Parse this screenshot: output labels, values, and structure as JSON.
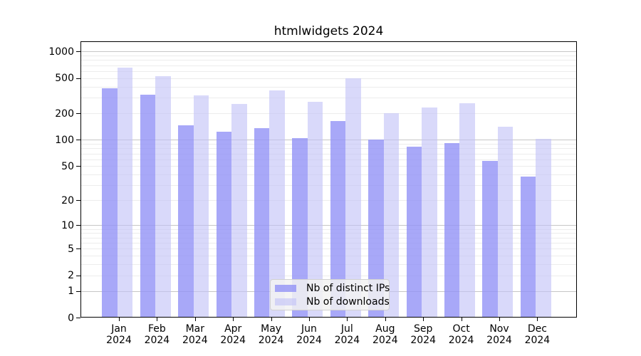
{
  "title": "htmlwidgets 2024",
  "colors": {
    "ips_bar": "rgba(146,146,246,0.8)",
    "downloads_bar": "rgba(193,193,247,0.62)",
    "grid_major": "#c6c6c6",
    "grid_minor": "#ececec",
    "axis": "#000000",
    "legend_bg": "rgba(242,242,242,0.85)",
    "legend_border": "#d0d0d0"
  },
  "chart_data": {
    "type": "bar",
    "title": "htmlwidgets 2024",
    "categories": [
      "Jan",
      "Feb",
      "Mar",
      "Apr",
      "May",
      "Jun",
      "Jul",
      "Aug",
      "Sep",
      "Oct",
      "Nov",
      "Dec"
    ],
    "x_tick_year": "2024",
    "series": [
      {
        "name": "Nb of distinct IPs",
        "values": [
          385,
          325,
          146,
          123,
          137,
          105,
          165,
          101,
          84,
          92,
          58,
          38
        ]
      },
      {
        "name": "Nb of downloads",
        "values": [
          655,
          525,
          320,
          258,
          365,
          270,
          495,
          200,
          234,
          260,
          141,
          103
        ]
      }
    ],
    "y_scale": "log1p",
    "y_tick_values": [
      1000,
      500,
      200,
      100,
      50,
      20,
      10,
      5,
      2,
      1,
      0
    ],
    "y_tick_labels": [
      "1000",
      "500",
      "200",
      "100",
      "50",
      "20",
      "10",
      "5",
      "2",
      "1",
      "0"
    ],
    "ylim": [
      0,
      1300
    ],
    "grid": true,
    "legend_position": "inside-bottom-center",
    "xlabel": "",
    "ylabel": ""
  }
}
